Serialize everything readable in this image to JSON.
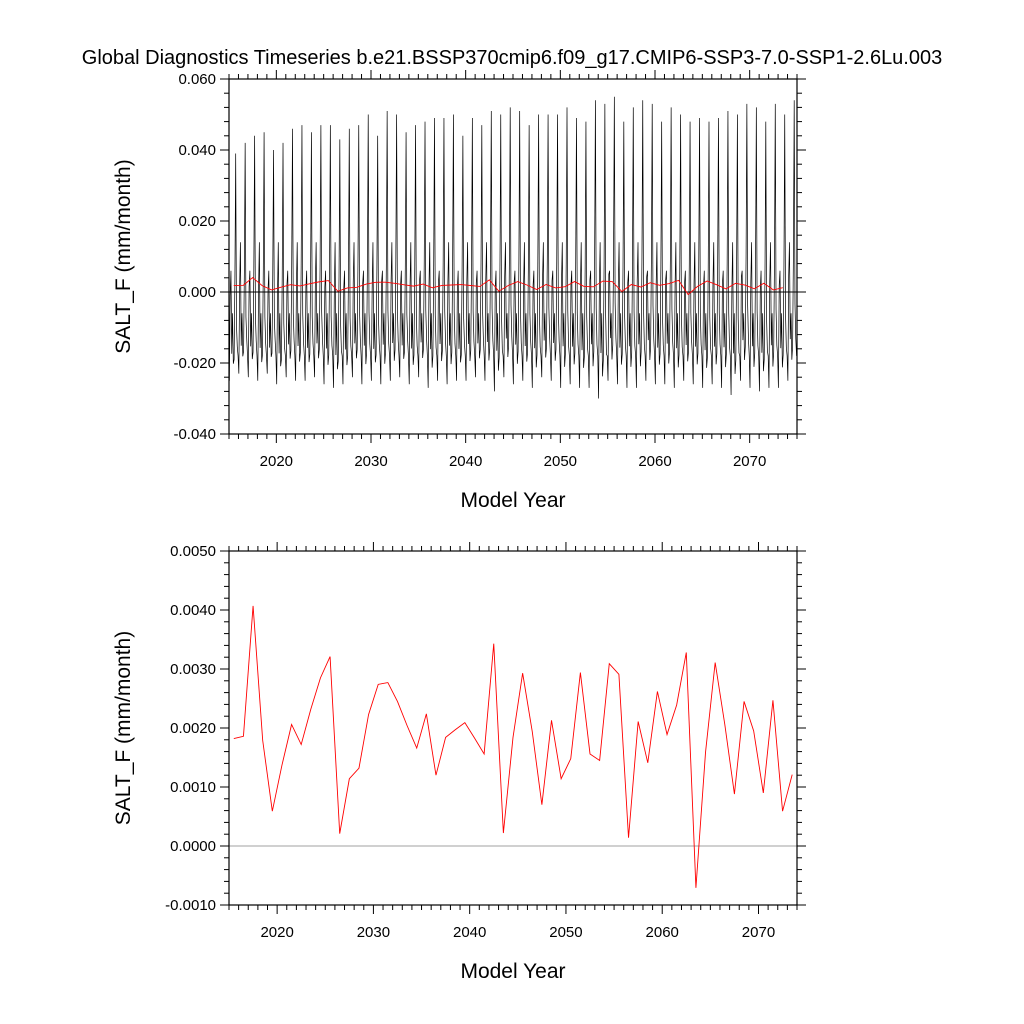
{
  "title": "Global Diagnostics Timeseries b.e21.BSSP370cmip6.f09_g17.CMIP6-SSP3-7.0-SSP1-2.6Lu.003",
  "colors": {
    "monthly": "#000000",
    "annual": "#ff0000",
    "zero_line": "#a0a0a0"
  },
  "chart_data": [
    {
      "type": "line",
      "xlabel": "Model Year",
      "ylabel": "SALT_F (mm/month)",
      "xlim": [
        2015,
        2075
      ],
      "ylim": [
        -0.04,
        0.06
      ],
      "x_ticks": [
        2020,
        2030,
        2040,
        2050,
        2060,
        2070
      ],
      "x_tick_labels": [
        "2020",
        "2030",
        "2040",
        "2050",
        "2060",
        "2070"
      ],
      "y_ticks": [
        -0.04,
        -0.02,
        0.0,
        0.02,
        0.04,
        0.06
      ],
      "y_tick_labels": [
        "-0.040",
        "-0.020",
        "0.000",
        "0.020",
        "0.040",
        "0.060"
      ],
      "reference_line_y": 0,
      "series": [
        {
          "kind": "monthly",
          "color": "#000000",
          "x_start": 2015.04,
          "x_step": 0.08333,
          "annual_peaks": [
            0.039,
            0.042,
            0.044,
            0.045,
            0.04,
            0.042,
            0.046,
            0.047,
            0.045,
            0.047,
            0.047,
            0.043,
            0.046,
            0.047,
            0.05,
            0.044,
            0.051,
            0.05,
            0.045,
            0.047,
            0.048,
            0.049,
            0.049,
            0.05,
            0.044,
            0.049,
            0.047,
            0.051,
            0.05,
            0.052,
            0.051,
            0.047,
            0.05,
            0.05,
            0.05,
            0.052,
            0.049,
            0.048,
            0.054,
            0.053,
            0.055,
            0.048,
            0.052,
            0.054,
            0.053,
            0.048,
            0.052,
            0.05,
            0.048,
            0.049,
            0.048,
            0.049,
            0.051,
            0.05,
            0.053,
            0.052,
            0.048,
            0.053,
            0.05,
            0.054
          ],
          "annual_troughs": [
            -0.025,
            -0.023,
            -0.024,
            -0.025,
            -0.023,
            -0.026,
            -0.024,
            -0.025,
            -0.025,
            -0.024,
            -0.026,
            -0.027,
            -0.026,
            -0.024,
            -0.026,
            -0.025,
            -0.026,
            -0.025,
            -0.024,
            -0.026,
            -0.024,
            -0.027,
            -0.025,
            -0.026,
            -0.025,
            -0.025,
            -0.024,
            -0.025,
            -0.028,
            -0.024,
            -0.026,
            -0.025,
            -0.027,
            -0.024,
            -0.025,
            -0.027,
            -0.026,
            -0.027,
            -0.027,
            -0.03,
            -0.025,
            -0.026,
            -0.027,
            -0.027,
            -0.025,
            -0.026,
            -0.026,
            -0.027,
            -0.025,
            -0.026,
            -0.027,
            -0.026,
            -0.027,
            -0.029,
            -0.025,
            -0.027,
            -0.028,
            -0.027,
            -0.027,
            -0.025
          ]
        },
        {
          "kind": "annual",
          "color": "#ff0000",
          "x": [
            2015.5,
            2016.5,
            2017.5,
            2018.5,
            2019.5,
            2020.5,
            2021.5,
            2022.5,
            2023.5,
            2024.5,
            2025.5,
            2026.5,
            2027.5,
            2028.5,
            2029.5,
            2030.5,
            2031.5,
            2032.5,
            2033.5,
            2034.5,
            2035.5,
            2036.5,
            2037.5,
            2038.5,
            2039.5,
            2040.5,
            2041.5,
            2042.5,
            2043.5,
            2044.5,
            2045.5,
            2046.5,
            2047.5,
            2048.5,
            2049.5,
            2050.5,
            2051.5,
            2052.5,
            2053.5,
            2054.5,
            2055.5,
            2056.5,
            2057.5,
            2058.5,
            2059.5,
            2060.5,
            2061.5,
            2062.5,
            2063.5,
            2064.5,
            2065.5,
            2066.5,
            2067.5,
            2068.5,
            2069.5,
            2070.5,
            2071.5,
            2072.5,
            2073.5
          ],
          "y": [
            0.00182,
            0.00186,
            0.00407,
            0.00179,
            0.00059,
            0.00137,
            0.00206,
            0.00172,
            0.00232,
            0.00285,
            0.00321,
            0.00021,
            0.00114,
            0.00132,
            0.00223,
            0.00274,
            0.00277,
            0.00245,
            0.00204,
            0.00166,
            0.00224,
            0.0012,
            0.00184,
            0.00197,
            0.00209,
            0.00183,
            0.00156,
            0.00343,
            0.00022,
            0.00184,
            0.00293,
            0.00194,
            0.0007,
            0.00213,
            0.00114,
            0.00148,
            0.00294,
            0.00156,
            0.00145,
            0.00309,
            0.00291,
            0.00014,
            0.00211,
            0.00141,
            0.00262,
            0.00189,
            0.00239,
            0.00328,
            -0.00071,
            0.00159,
            0.00311,
            0.00206,
            0.00088,
            0.00245,
            0.00195,
            0.0009,
            0.00247,
            0.00059,
            0.00121
          ]
        }
      ]
    },
    {
      "type": "line",
      "xlabel": "Model Year",
      "ylabel": "SALT_F (mm/month)",
      "xlim": [
        2015,
        2074
      ],
      "ylim": [
        -0.001,
        0.005
      ],
      "x_ticks": [
        2020,
        2030,
        2040,
        2050,
        2060,
        2070
      ],
      "x_tick_labels": [
        "2020",
        "2030",
        "2040",
        "2050",
        "2060",
        "2070"
      ],
      "y_ticks": [
        -0.001,
        0.0,
        0.001,
        0.002,
        0.003,
        0.004,
        0.005
      ],
      "y_tick_labels": [
        "-0.0010",
        "0.0000",
        "0.0010",
        "0.0020",
        "0.0030",
        "0.0040",
        "0.0050"
      ],
      "reference_line_y": 0,
      "series": [
        {
          "kind": "annual",
          "color": "#ff0000",
          "x": [
            2015.5,
            2016.5,
            2017.5,
            2018.5,
            2019.5,
            2020.5,
            2021.5,
            2022.5,
            2023.5,
            2024.5,
            2025.5,
            2026.5,
            2027.5,
            2028.5,
            2029.5,
            2030.5,
            2031.5,
            2032.5,
            2033.5,
            2034.5,
            2035.5,
            2036.5,
            2037.5,
            2038.5,
            2039.5,
            2040.5,
            2041.5,
            2042.5,
            2043.5,
            2044.5,
            2045.5,
            2046.5,
            2047.5,
            2048.5,
            2049.5,
            2050.5,
            2051.5,
            2052.5,
            2053.5,
            2054.5,
            2055.5,
            2056.5,
            2057.5,
            2058.5,
            2059.5,
            2060.5,
            2061.5,
            2062.5,
            2063.5,
            2064.5,
            2065.5,
            2066.5,
            2067.5,
            2068.5,
            2069.5,
            2070.5,
            2071.5,
            2072.5,
            2073.5
          ],
          "y": [
            0.00182,
            0.00186,
            0.00407,
            0.00179,
            0.00059,
            0.00137,
            0.00206,
            0.00172,
            0.00232,
            0.00285,
            0.00321,
            0.00021,
            0.00114,
            0.00132,
            0.00223,
            0.00274,
            0.00277,
            0.00245,
            0.00204,
            0.00166,
            0.00224,
            0.0012,
            0.00184,
            0.00197,
            0.00209,
            0.00183,
            0.00156,
            0.00343,
            0.00022,
            0.00184,
            0.00293,
            0.00194,
            0.0007,
            0.00213,
            0.00114,
            0.00148,
            0.00294,
            0.00156,
            0.00145,
            0.00309,
            0.00291,
            0.00014,
            0.00211,
            0.00141,
            0.00262,
            0.00189,
            0.00239,
            0.00328,
            -0.00071,
            0.00159,
            0.00311,
            0.00206,
            0.00088,
            0.00245,
            0.00195,
            0.0009,
            0.00247,
            0.00059,
            0.00121
          ]
        }
      ]
    }
  ]
}
